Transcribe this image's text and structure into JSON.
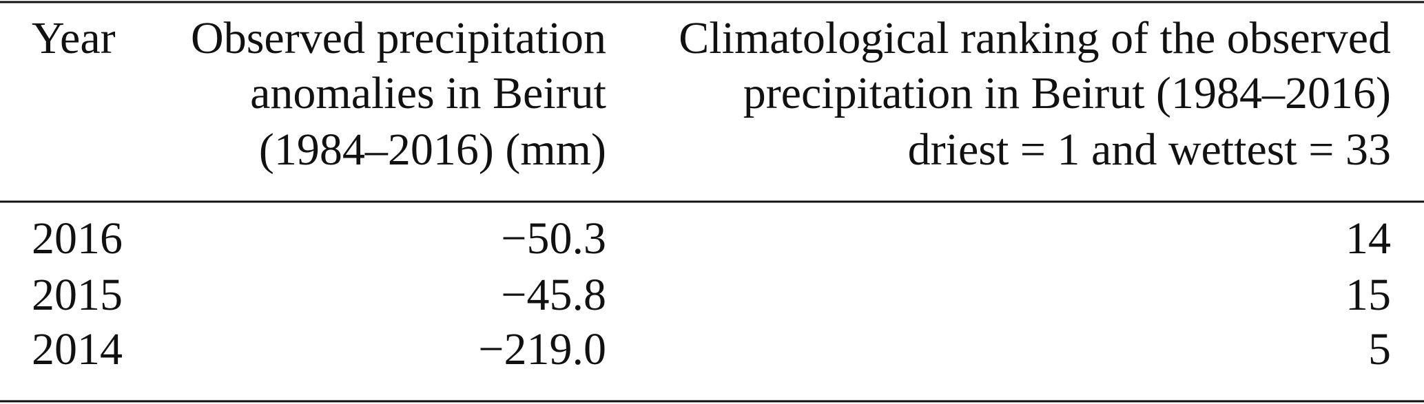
{
  "table": {
    "columns": [
      {
        "lines": [
          "Year"
        ]
      },
      {
        "lines": [
          "Observed precipitation",
          "anomalies in Beirut",
          "(1984–2016) (mm)"
        ]
      },
      {
        "lines": [
          "Climatological ranking of the observed",
          "precipitation in Beirut (1984–2016)",
          "driest = 1 and wettest = 33"
        ]
      }
    ],
    "rows": [
      [
        "2016",
        "−50.3",
        "14"
      ],
      [
        "2015",
        "−45.8",
        "15"
      ],
      [
        "2014",
        "−219.0",
        "5"
      ]
    ]
  }
}
